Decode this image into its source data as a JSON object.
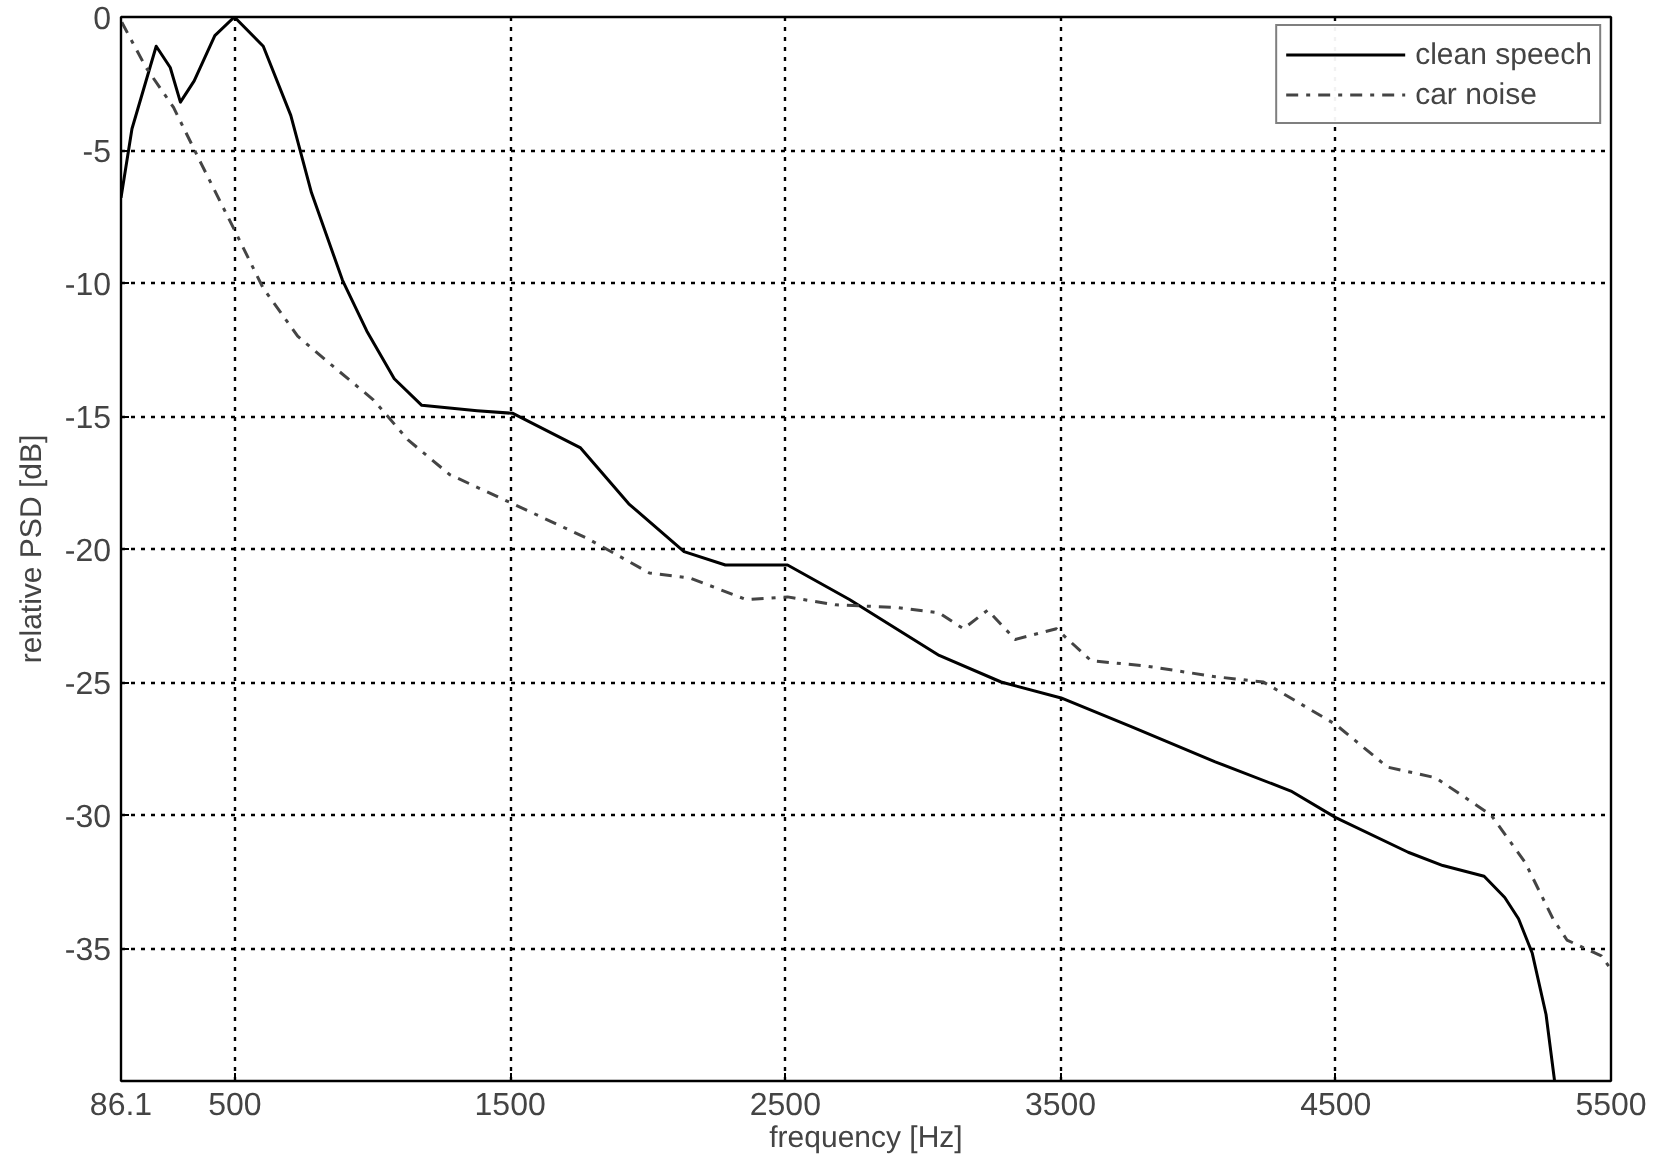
{
  "chart_data": {
    "type": "line",
    "xlabel": "frequency [Hz]",
    "ylabel": "relative PSD [dB]",
    "xlim": [
      86.1,
      5500
    ],
    "ylim": [
      -40,
      0
    ],
    "xticks": [
      86.1,
      500,
      1500,
      2500,
      3500,
      4500,
      5500
    ],
    "yticks": [
      0,
      -5,
      -10,
      -15,
      -20,
      -25,
      -30,
      -35
    ],
    "grid": true,
    "legend": "top right",
    "marker": "none",
    "series": [
      {
        "name": "clean speech",
        "color": "#000000",
        "line_style": "solid",
        "x": [
          86.1,
          126,
          214,
          265,
          302,
          352,
          427,
          498,
          603,
          703,
          778,
          891,
          979,
          1079,
          1179,
          1380,
          1510,
          1756,
          1931,
          2132,
          2282,
          2508,
          2733,
          3059,
          3284,
          3502,
          3761,
          4062,
          4337,
          4500,
          4763,
          4889,
          5039,
          5114,
          5164,
          5214,
          5264,
          5295
        ],
        "values": [
          -6.8,
          -4.2,
          -1.1,
          -1.9,
          -3.2,
          -2.4,
          -0.7,
          0,
          -1.1,
          -3.7,
          -6.6,
          -9.9,
          -11.8,
          -13.6,
          -14.6,
          -14.8,
          -14.9,
          -16.2,
          -18.3,
          -20.1,
          -20.6,
          -20.6,
          -21.9,
          -24.0,
          -25.0,
          -25.6,
          -26.7,
          -28.0,
          -29.1,
          -30.1,
          -31.4,
          -31.9,
          -32.3,
          -33.1,
          -33.9,
          -35.2,
          -37.5,
          -40
        ]
      },
      {
        "name": "car noise",
        "color": "#444444",
        "line_style": "dashdot",
        "x": [
          89,
          177,
          277,
          377,
          498,
          603,
          728,
          853,
          1004,
          1129,
          1280,
          1510,
          1780,
          2006,
          2156,
          2357,
          2508,
          2683,
          2908,
          3059,
          3147,
          3235,
          3335,
          3485,
          3611,
          3811,
          4062,
          4237,
          4500,
          4688,
          4863,
          5064,
          5189,
          5289,
          5340,
          5465,
          5500
        ],
        "values": [
          -0.2,
          -1.9,
          -3.4,
          -5.5,
          -8.0,
          -10.2,
          -12.0,
          -13.1,
          -14.4,
          -15.9,
          -17.2,
          -18.3,
          -19.6,
          -20.9,
          -21.1,
          -21.9,
          -21.8,
          -22.1,
          -22.2,
          -22.4,
          -23.0,
          -22.3,
          -23.4,
          -23.0,
          -24.2,
          -24.4,
          -24.8,
          -25.0,
          -26.6,
          -28.2,
          -28.6,
          -30.0,
          -31.8,
          -33.9,
          -34.7,
          -35.3,
          -35.8
        ]
      }
    ]
  }
}
